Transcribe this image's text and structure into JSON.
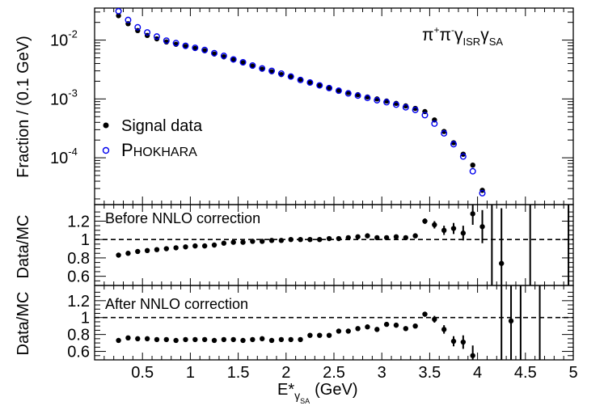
{
  "chart_data": [
    {
      "type": "scatter",
      "panel": "top",
      "title": "",
      "annotation": {
        "base": "π",
        "sup1": "+",
        "sup2": "-",
        "sub1": "ISR",
        "sub2": "SA"
      },
      "ylabel": "Fraction / (0.1 GeV)",
      "yscale": "log",
      "ylim": [
        1.6e-05,
        0.035
      ],
      "xlim": [
        0,
        5
      ],
      "ytick_labels": [
        {
          "base": "10",
          "exp": "-2",
          "value": 0.01
        },
        {
          "base": "10",
          "exp": "-3",
          "value": 0.001
        },
        {
          "base": "10",
          "exp": "-4",
          "value": 0.0001
        }
      ],
      "legend": {
        "position": "left-middle",
        "entries": [
          {
            "label": "Signal data",
            "marker": "filled-circle",
            "color": "#000000"
          },
          {
            "label_big": "P",
            "label_rest": "HOKHARA",
            "marker": "open-circle",
            "color": "#0000ee"
          }
        ]
      },
      "series": [
        {
          "name": "Signal data",
          "marker": "filled",
          "x": [
            0.25,
            0.35,
            0.45,
            0.55,
            0.65,
            0.75,
            0.85,
            0.95,
            1.05,
            1.15,
            1.25,
            1.35,
            1.45,
            1.55,
            1.65,
            1.75,
            1.85,
            1.95,
            2.05,
            2.15,
            2.25,
            2.35,
            2.45,
            2.55,
            2.65,
            2.75,
            2.85,
            2.95,
            3.05,
            3.15,
            3.25,
            3.35,
            3.45,
            3.55,
            3.65,
            3.75,
            3.85,
            3.95,
            4.05
          ],
          "y": [
            0.026,
            0.019,
            0.0145,
            0.012,
            0.0105,
            0.0093,
            0.0085,
            0.0078,
            0.0072,
            0.0066,
            0.0058,
            0.0052,
            0.0046,
            0.0041,
            0.0036,
            0.0032,
            0.0029,
            0.0026,
            0.0024,
            0.00215,
            0.0019,
            0.0017,
            0.00155,
            0.0014,
            0.00128,
            0.00118,
            0.00108,
            0.001,
            0.00092,
            0.00084,
            0.00076,
            0.00069,
            0.00061,
            0.00044,
            0.00028,
            0.00018,
            0.000115,
            7.5e-05,
            2.8e-05
          ]
        },
        {
          "name": "PHOKHARA",
          "marker": "open",
          "x": [
            0.25,
            0.35,
            0.45,
            0.55,
            0.65,
            0.75,
            0.85,
            0.95,
            1.05,
            1.15,
            1.25,
            1.35,
            1.45,
            1.55,
            1.65,
            1.75,
            1.85,
            1.95,
            2.05,
            2.15,
            2.25,
            2.35,
            2.45,
            2.55,
            2.65,
            2.75,
            2.85,
            2.95,
            3.05,
            3.15,
            3.25,
            3.35,
            3.45,
            3.55,
            3.65,
            3.75,
            3.85,
            3.95,
            4.05
          ],
          "y": [
            0.031,
            0.022,
            0.0165,
            0.0135,
            0.0115,
            0.0098,
            0.0089,
            0.008,
            0.0074,
            0.0068,
            0.006,
            0.0054,
            0.0047,
            0.0042,
            0.0037,
            0.0033,
            0.003,
            0.0027,
            0.0024,
            0.0021,
            0.0019,
            0.0017,
            0.00153,
            0.00138,
            0.00124,
            0.00114,
            0.00104,
            0.00095,
            0.00088,
            0.0008,
            0.00072,
            0.00065,
            0.00053,
            0.00038,
            0.00026,
            0.00017,
            0.000105,
            5.9e-05,
            2.5e-05
          ]
        }
      ]
    },
    {
      "type": "scatter",
      "panel": "middle",
      "annotation": "Before NNLO correction",
      "ylabel": "Data/MC",
      "ylim": [
        0.5,
        1.38
      ],
      "xlim": [
        0,
        5
      ],
      "ytick_labels": [
        "1.2",
        "1",
        "0.8",
        "0.6"
      ],
      "reference_line": 1,
      "series": [
        {
          "name": "",
          "x": [
            0.25,
            0.35,
            0.45,
            0.55,
            0.65,
            0.75,
            0.85,
            0.95,
            1.05,
            1.15,
            1.25,
            1.35,
            1.45,
            1.55,
            1.65,
            1.75,
            1.85,
            1.95,
            2.05,
            2.15,
            2.25,
            2.35,
            2.45,
            2.55,
            2.65,
            2.75,
            2.85,
            2.95,
            3.05,
            3.15,
            3.25,
            3.35,
            3.45,
            3.55,
            3.65,
            3.75,
            3.85,
            3.95,
            4.05,
            4.25
          ],
          "y": [
            0.83,
            0.85,
            0.87,
            0.88,
            0.89,
            0.9,
            0.91,
            0.92,
            0.93,
            0.93,
            0.94,
            0.96,
            0.97,
            0.97,
            0.98,
            0.98,
            0.99,
            0.99,
            1.0,
            1.0,
            1.0,
            1.0,
            1.01,
            1.01,
            1.02,
            1.03,
            1.04,
            1.02,
            1.02,
            1.03,
            1.02,
            1.04,
            1.2,
            1.16,
            1.1,
            1.12,
            1.07,
            1.28,
            1.14,
            0.74
          ],
          "err": [
            0.01,
            0.01,
            0.01,
            0.01,
            0.01,
            0.01,
            0.01,
            0.01,
            0.01,
            0.01,
            0.01,
            0.01,
            0.01,
            0.01,
            0.01,
            0.01,
            0.01,
            0.01,
            0.01,
            0.01,
            0.01,
            0.01,
            0.01,
            0.01,
            0.01,
            0.01,
            0.01,
            0.01,
            0.01,
            0.01,
            0.01,
            0.015,
            0.03,
            0.04,
            0.05,
            0.06,
            0.08,
            0.12,
            0.18,
            0.6
          ]
        }
      ],
      "open_error_bars": [
        4.15,
        4.55,
        4.95
      ]
    },
    {
      "type": "scatter",
      "panel": "bottom",
      "annotation": "After NNLO correction",
      "ylabel": "Data/MC",
      "xlabel_base": "E*",
      "xlabel_sub": "γ",
      "xlabel_subsub": "SA",
      "xlabel_unit": "(GeV)",
      "ylim": [
        0.5,
        1.38
      ],
      "xlim": [
        0,
        5
      ],
      "xtick_labels": [
        "0.5",
        "1",
        "1.5",
        "2",
        "2.5",
        "3",
        "3.5",
        "4",
        "4.5",
        "5"
      ],
      "ytick_labels": [
        "1.2",
        "1",
        "0.8",
        "0.6"
      ],
      "reference_line": 1,
      "series": [
        {
          "name": "",
          "x": [
            0.25,
            0.35,
            0.45,
            0.55,
            0.65,
            0.75,
            0.85,
            0.95,
            1.05,
            1.15,
            1.25,
            1.35,
            1.45,
            1.55,
            1.65,
            1.75,
            1.85,
            1.95,
            2.05,
            2.15,
            2.25,
            2.35,
            2.45,
            2.55,
            2.65,
            2.75,
            2.85,
            2.95,
            3.05,
            3.15,
            3.25,
            3.35,
            3.45,
            3.55,
            3.65,
            3.75,
            3.85,
            3.95,
            4.35
          ],
          "y": [
            0.73,
            0.76,
            0.75,
            0.75,
            0.74,
            0.74,
            0.73,
            0.74,
            0.74,
            0.74,
            0.73,
            0.74,
            0.74,
            0.73,
            0.74,
            0.75,
            0.73,
            0.74,
            0.74,
            0.74,
            0.79,
            0.79,
            0.79,
            0.84,
            0.84,
            0.87,
            0.89,
            0.86,
            0.92,
            0.91,
            0.87,
            0.9,
            1.04,
            0.98,
            0.86,
            0.72,
            0.71,
            0.55,
            0.96
          ],
          "err": [
            0.01,
            0.01,
            0.01,
            0.01,
            0.01,
            0.01,
            0.01,
            0.01,
            0.01,
            0.01,
            0.01,
            0.01,
            0.01,
            0.01,
            0.01,
            0.01,
            0.01,
            0.01,
            0.01,
            0.01,
            0.01,
            0.01,
            0.01,
            0.01,
            0.01,
            0.01,
            0.01,
            0.01,
            0.01,
            0.01,
            0.01,
            0.015,
            0.03,
            0.04,
            0.05,
            0.06,
            0.08,
            0.12,
            0.5
          ]
        }
      ],
      "open_error_bars": [
        4.25,
        4.45,
        4.65
      ]
    }
  ]
}
